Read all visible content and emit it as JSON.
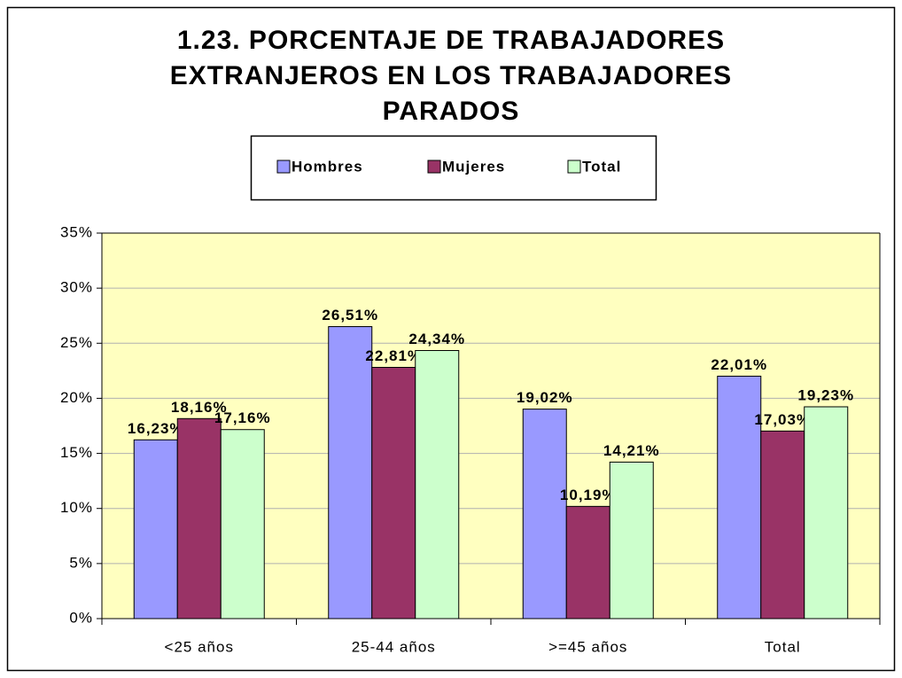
{
  "chart_data": {
    "type": "bar",
    "title": "1.23. PORCENTAJE DE TRABAJADORES EXTRANJEROS EN LOS TRABAJADORES PARADOS",
    "categories": [
      "<25 años",
      "25-44 años",
      ">=45 años",
      "Total"
    ],
    "series": [
      {
        "name": "Hombres",
        "color": "#9999ff",
        "values": [
          16.23,
          26.51,
          19.02,
          22.01
        ],
        "value_labels": [
          "16,23%",
          "26,51%",
          "19,02%",
          "22,01%"
        ]
      },
      {
        "name": "Mujeres",
        "color": "#993366",
        "values": [
          18.16,
          22.81,
          10.19,
          17.03
        ],
        "value_labels": [
          "18,16%",
          "22,81%",
          "10,19%",
          "17,03%"
        ]
      },
      {
        "name": "Total",
        "color": "#ccffcc",
        "values": [
          17.16,
          24.34,
          14.21,
          19.23
        ],
        "value_labels": [
          "17,16%",
          "24,34%",
          "14,21%",
          "19,23%"
        ]
      }
    ],
    "ylim": [
      0,
      35
    ],
    "yticks": [
      {
        "value": 0,
        "label": "0%"
      },
      {
        "value": 5,
        "label": "5%"
      },
      {
        "value": 10,
        "label": "10%"
      },
      {
        "value": 15,
        "label": "15%"
      },
      {
        "value": 20,
        "label": "20%"
      },
      {
        "value": 25,
        "label": "25%"
      },
      {
        "value": 30,
        "label": "30%"
      },
      {
        "value": 35,
        "label": "35%"
      }
    ],
    "grid": true,
    "plot_background": "#ffffc0",
    "legend": "top"
  }
}
